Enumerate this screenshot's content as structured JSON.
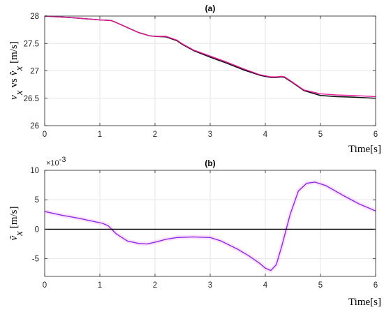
{
  "colors": {
    "actual": "#111111",
    "estimate": "#e6199b",
    "error": "#8a2be2",
    "error_glow": "#ff8ff5",
    "grid": "#e6e6e6",
    "axis": "#262626",
    "zero_line": "#000000"
  },
  "chart_data": [
    {
      "type": "line",
      "title": "(a)",
      "xlabel": "Time[s]",
      "ylabel": "v_x vs v̂_x [m/s]",
      "ylabel_parts": {
        "v": "v",
        "x": "x",
        "vs": "vs",
        "vhat": "v̂",
        "unit": "[m/s]"
      },
      "xlim": [
        0,
        6
      ],
      "ylim": [
        26,
        28
      ],
      "xticks": [
        "0",
        "1",
        "2",
        "3",
        "4",
        "5",
        "6"
      ],
      "yticks": [
        "26",
        "26.5",
        "27",
        "27.5",
        "28"
      ],
      "grid": true,
      "series": [
        {
          "key": "actual",
          "x": [
            0,
            0.5,
            1.0,
            1.2,
            1.3,
            1.5,
            1.7,
            1.9,
            2.0,
            2.2,
            2.4,
            2.5,
            2.7,
            3.0,
            3.3,
            3.6,
            3.9,
            4.1,
            4.2,
            4.3,
            4.35,
            4.5,
            4.7,
            5.0,
            5.3,
            5.6,
            6.0
          ],
          "values": [
            28.0,
            27.97,
            27.93,
            27.92,
            27.88,
            27.79,
            27.7,
            27.64,
            27.63,
            27.62,
            27.55,
            27.48,
            27.37,
            27.25,
            27.14,
            27.02,
            26.92,
            26.88,
            26.88,
            26.89,
            26.88,
            26.78,
            26.64,
            26.55,
            26.53,
            26.52,
            26.5
          ]
        },
        {
          "key": "estimate",
          "x": [
            0,
            0.5,
            1.0,
            1.2,
            1.3,
            1.5,
            1.7,
            1.9,
            2.0,
            2.2,
            2.4,
            2.5,
            2.7,
            3.0,
            3.3,
            3.6,
            3.9,
            4.1,
            4.2,
            4.3,
            4.35,
            4.5,
            4.7,
            5.0,
            5.3,
            5.6,
            6.0
          ],
          "values": [
            28.0,
            27.97,
            27.93,
            27.92,
            27.88,
            27.79,
            27.7,
            27.64,
            27.63,
            27.63,
            27.56,
            27.49,
            27.38,
            27.27,
            27.16,
            27.04,
            26.93,
            26.89,
            26.89,
            26.9,
            26.89,
            26.79,
            26.65,
            26.58,
            26.56,
            26.55,
            26.53
          ]
        }
      ]
    },
    {
      "type": "line",
      "title": "(b)",
      "xlabel": "Time[s]",
      "ylabel": "ṽ_x [m/s]",
      "ylabel_parts": {
        "v": "ṽ",
        "x": "x",
        "unit": "[m/s]"
      },
      "exponent": "×10",
      "exponent_power": "-3",
      "xlim": [
        0,
        6
      ],
      "ylim": [
        -8,
        10
      ],
      "xticks": [
        "0",
        "1",
        "2",
        "3",
        "4",
        "5",
        "6"
      ],
      "yticks": [
        "-5",
        "0",
        "5",
        "10"
      ],
      "grid": true,
      "series": [
        {
          "key": "error",
          "x": [
            0,
            0.3,
            0.6,
            0.9,
            1.05,
            1.15,
            1.3,
            1.5,
            1.7,
            1.85,
            2.0,
            2.2,
            2.4,
            2.7,
            3.0,
            3.2,
            3.5,
            3.7,
            3.9,
            4.0,
            4.1,
            4.2,
            4.3,
            4.45,
            4.6,
            4.75,
            4.9,
            5.1,
            5.4,
            5.7,
            6.0
          ],
          "values": [
            3.0,
            2.4,
            1.9,
            1.3,
            1.0,
            0.6,
            -0.8,
            -2.0,
            -2.4,
            -2.5,
            -2.2,
            -1.7,
            -1.4,
            -1.3,
            -1.4,
            -2.0,
            -3.4,
            -4.5,
            -5.8,
            -6.6,
            -7.0,
            -6.0,
            -2.8,
            2.5,
            6.5,
            7.8,
            8.0,
            7.4,
            5.8,
            4.3,
            3.1
          ]
        },
        {
          "key": "zero",
          "x": [
            0,
            6
          ],
          "values": [
            0,
            0
          ]
        }
      ]
    }
  ]
}
